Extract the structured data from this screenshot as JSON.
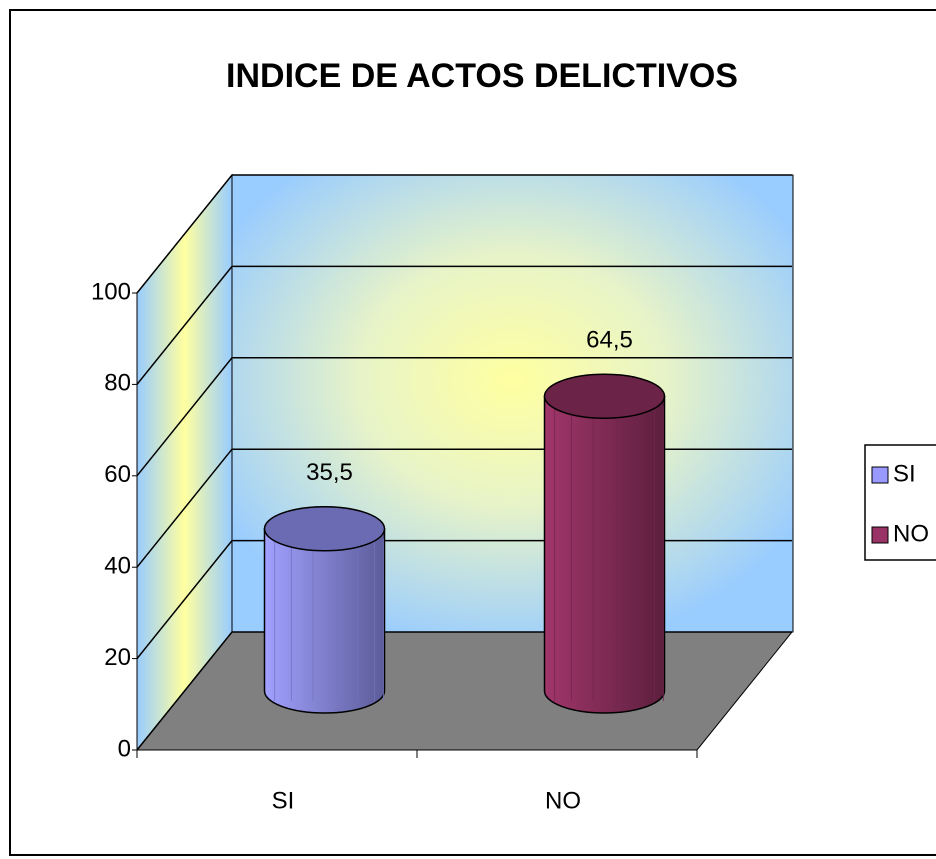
{
  "chart_data": {
    "type": "bar3d-cylinder",
    "title": "INDICE DE ACTOS DELICTIVOS",
    "categories": [
      "SI",
      "NO"
    ],
    "series": [
      {
        "name": "SI",
        "color": "#9999ff",
        "values": [
          35.5,
          null
        ],
        "value_labels": [
          "35,5",
          null
        ]
      },
      {
        "name": "NO",
        "color": "#993366",
        "values": [
          null,
          64.5
        ],
        "value_labels": [
          null,
          "64,5"
        ]
      }
    ],
    "ylim": [
      0,
      100
    ],
    "yticks": [
      0,
      20,
      40,
      60,
      80,
      100
    ],
    "grid": true,
    "legend": "right"
  }
}
